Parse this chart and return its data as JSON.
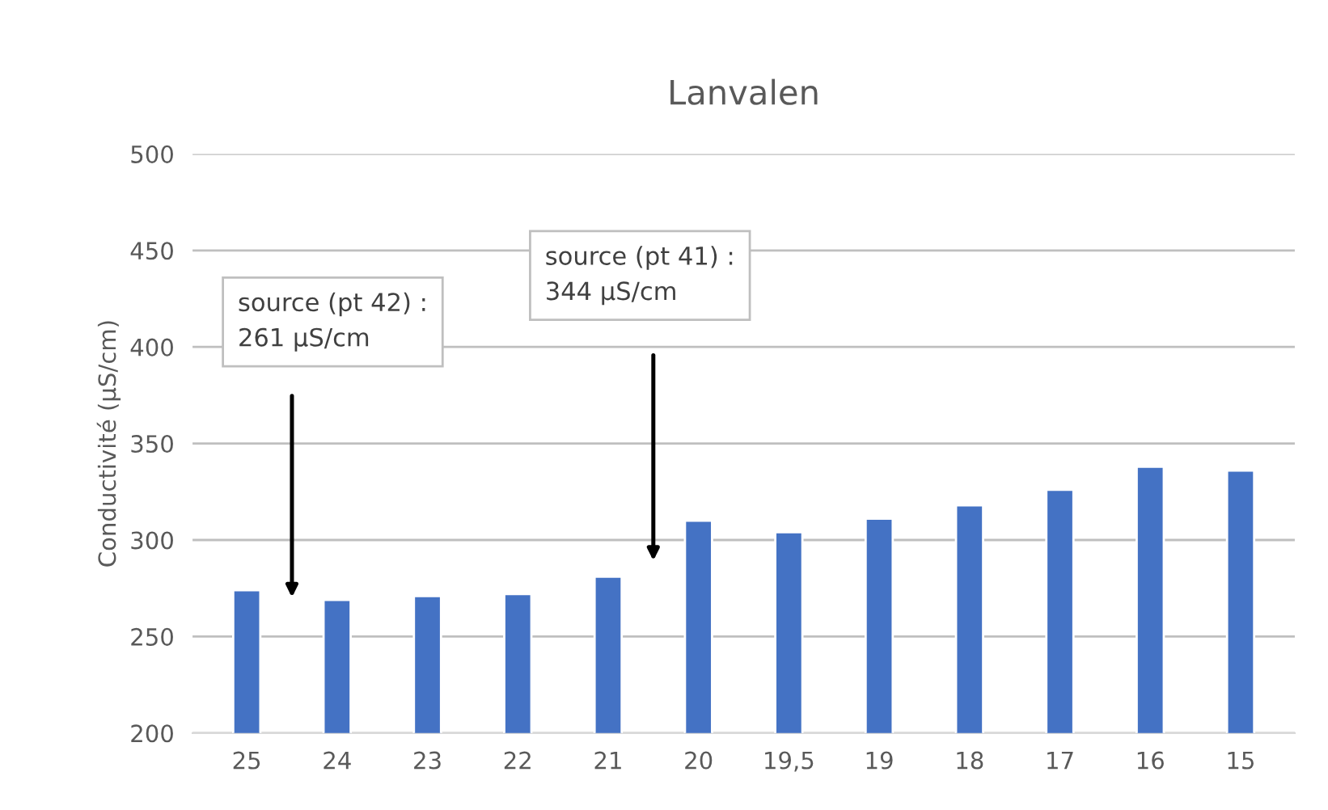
{
  "chart_data": {
    "type": "bar",
    "title": "Lanvalen",
    "ylabel": "Conductivité (µS/cm)",
    "categories": [
      "25",
      "24",
      "23",
      "22",
      "21",
      "20",
      "19,5",
      "19",
      "18",
      "17",
      "16",
      "15"
    ],
    "values": [
      274,
      269,
      271,
      272,
      281,
      310,
      304,
      311,
      318,
      326,
      338,
      336
    ],
    "color": "#4472c4",
    "ylim": [
      200,
      500
    ],
    "yticks": [
      200,
      250,
      300,
      350,
      400,
      450,
      500
    ],
    "grid": "y",
    "annotations": [
      "source (pt 42) :\n261 µS/cm",
      "source (pt 41) :\n344 µS/cm"
    ]
  }
}
